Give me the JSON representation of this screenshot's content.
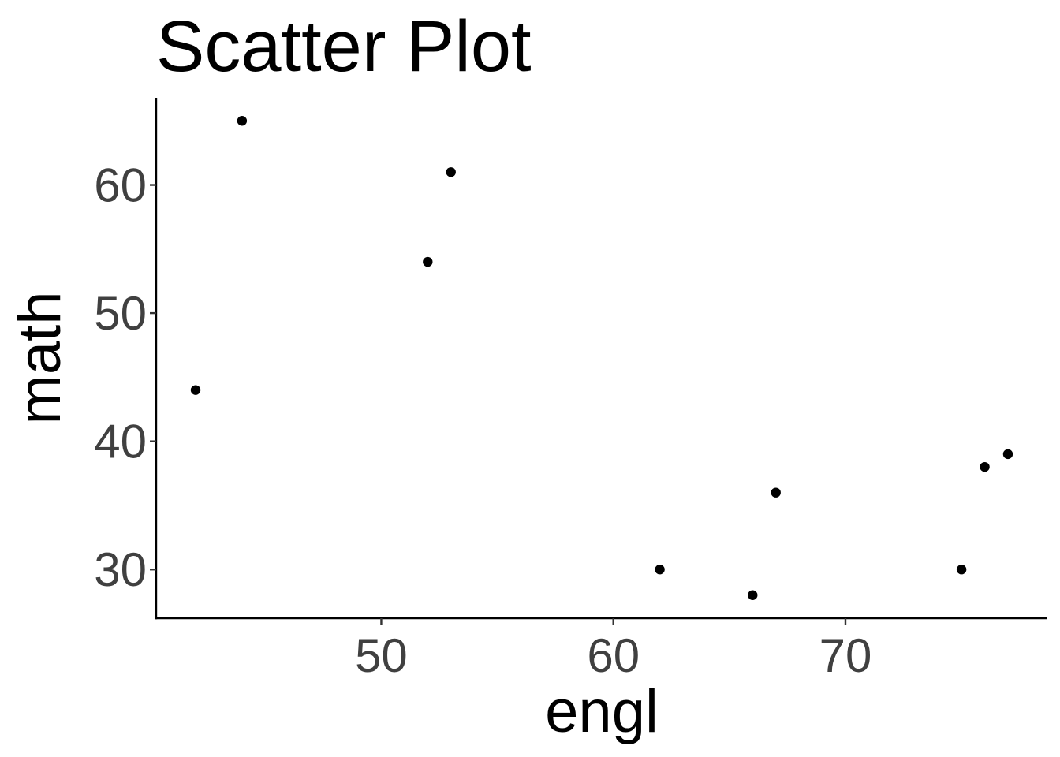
{
  "chart_data": {
    "type": "scatter",
    "title": "Scatter Plot",
    "xlabel": "engl",
    "ylabel": "math",
    "xlim": [
      40.3,
      78.7
    ],
    "ylim": [
      26.2,
      66.8
    ],
    "x_ticks": [
      50,
      60,
      70
    ],
    "y_ticks": [
      30,
      40,
      50,
      60
    ],
    "grid": false,
    "series": [
      {
        "color": "#000000",
        "points": [
          {
            "x": 42,
            "y": 44
          },
          {
            "x": 44,
            "y": 65
          },
          {
            "x": 52,
            "y": 54
          },
          {
            "x": 53,
            "y": 61
          },
          {
            "x": 62,
            "y": 30
          },
          {
            "x": 66,
            "y": 28
          },
          {
            "x": 67,
            "y": 36
          },
          {
            "x": 75,
            "y": 30
          },
          {
            "x": 76,
            "y": 38
          },
          {
            "x": 77,
            "y": 39
          }
        ]
      }
    ]
  }
}
